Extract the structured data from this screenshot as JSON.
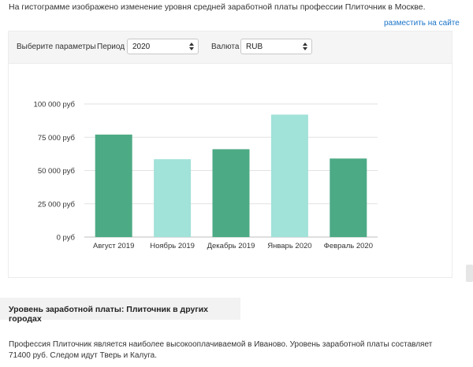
{
  "intro_text": "На гистограмме изображено изменение уровня средней заработной платы профессии Плиточник в Москве.",
  "place_on_site_link": "разместить на сайте",
  "params": {
    "choose_label": "Выберите параметры",
    "period_label": "Период",
    "period_value": "2020",
    "currency_label": "Валюта",
    "currency_value": "RUB"
  },
  "colors": {
    "bar_dark": "#4caa85",
    "bar_light": "#a1e2d9",
    "link": "#1a73c8"
  },
  "chart_data": {
    "type": "bar",
    "categories": [
      "Август 2019",
      "Ноябрь 2019",
      "Декабрь 2019",
      "Январь 2020",
      "Февраль 2020"
    ],
    "values": [
      77000,
      58500,
      66000,
      92000,
      59000
    ],
    "bar_colors": [
      "#4caa85",
      "#a1e2d9",
      "#4caa85",
      "#a1e2d9",
      "#4caa85"
    ],
    "ylim": [
      0,
      100000
    ],
    "yticks": [
      0,
      25000,
      50000,
      75000,
      100000
    ],
    "ytick_labels": [
      "0 руб",
      "25 000 руб",
      "50 000 руб",
      "75 000 руб",
      "100 000 руб"
    ],
    "title": "",
    "xlabel": "",
    "ylabel": "",
    "grid": true
  },
  "other_cities": {
    "heading": "Уровень заработной платы: Плиточник в других городах",
    "text": "Профессия Плиточник является наиболее высокооплачиваемой в Иваново. Уровень заработной платы составляет 71400 руб. Следом идут Тверь и Калуга."
  }
}
